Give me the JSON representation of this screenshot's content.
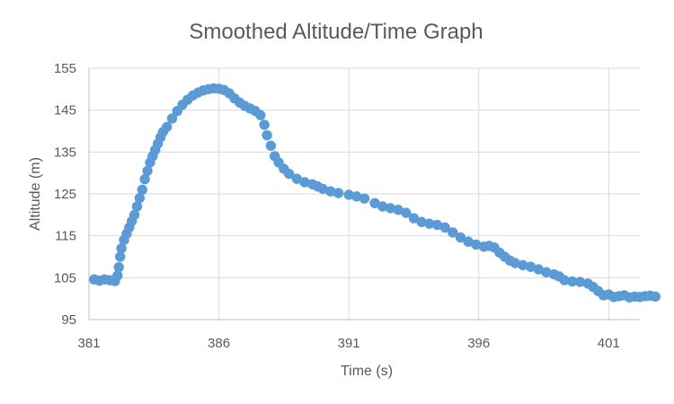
{
  "chart_data": {
    "type": "scatter",
    "title": "Smoothed Altitude/Time Graph",
    "xlabel": "Time (s)",
    "ylabel": "Altitude (m)",
    "xlim": [
      381,
      402.2
    ],
    "ylim": [
      95,
      155
    ],
    "x_ticks": [
      381,
      386,
      391,
      396,
      401
    ],
    "y_ticks": [
      95,
      105,
      115,
      125,
      135,
      145,
      155
    ],
    "grid": true,
    "legend": "none",
    "series": [
      {
        "color": "#5b9bd5",
        "points": [
          [
            381.2,
            104.6
          ],
          [
            381.4,
            104.3
          ],
          [
            381.6,
            104.6
          ],
          [
            381.8,
            104.4
          ],
          [
            382.0,
            104.2
          ],
          [
            382.1,
            105.5
          ],
          [
            382.15,
            107.5
          ],
          [
            382.2,
            110.0
          ],
          [
            382.25,
            112.0
          ],
          [
            382.35,
            114.0
          ],
          [
            382.45,
            115.5
          ],
          [
            382.55,
            117.0
          ],
          [
            382.65,
            118.5
          ],
          [
            382.75,
            120.0
          ],
          [
            382.85,
            122.0
          ],
          [
            382.95,
            124.0
          ],
          [
            383.05,
            126.0
          ],
          [
            383.15,
            128.5
          ],
          [
            383.25,
            130.5
          ],
          [
            383.35,
            132.5
          ],
          [
            383.45,
            134.0
          ],
          [
            383.55,
            135.5
          ],
          [
            383.65,
            137.0
          ],
          [
            383.75,
            138.5
          ],
          [
            383.85,
            139.8
          ],
          [
            384.0,
            141.0
          ],
          [
            384.2,
            143.0
          ],
          [
            384.4,
            144.8
          ],
          [
            384.6,
            146.3
          ],
          [
            384.8,
            147.5
          ],
          [
            385.0,
            148.5
          ],
          [
            385.2,
            149.2
          ],
          [
            385.4,
            149.7
          ],
          [
            385.6,
            150.0
          ],
          [
            385.8,
            150.2
          ],
          [
            386.0,
            150.1
          ],
          [
            386.2,
            149.8
          ],
          [
            386.4,
            149.0
          ],
          [
            386.6,
            147.8
          ],
          [
            386.8,
            146.8
          ],
          [
            387.0,
            146.0
          ],
          [
            387.2,
            145.4
          ],
          [
            387.4,
            144.8
          ],
          [
            387.6,
            143.8
          ],
          [
            387.75,
            141.5
          ],
          [
            387.85,
            139.0
          ],
          [
            388.0,
            136.5
          ],
          [
            388.15,
            134.0
          ],
          [
            388.3,
            132.5
          ],
          [
            388.5,
            131.0
          ],
          [
            388.7,
            129.8
          ],
          [
            389.0,
            128.6
          ],
          [
            389.3,
            127.8
          ],
          [
            389.6,
            127.3
          ],
          [
            389.8,
            126.8
          ],
          [
            390.0,
            126.2
          ],
          [
            390.3,
            125.6
          ],
          [
            390.6,
            125.2
          ],
          [
            391.0,
            124.8
          ],
          [
            391.3,
            124.4
          ],
          [
            391.6,
            123.9
          ],
          [
            392.0,
            122.8
          ],
          [
            392.3,
            122.0
          ],
          [
            392.6,
            121.6
          ],
          [
            392.9,
            121.2
          ],
          [
            393.2,
            120.5
          ],
          [
            393.5,
            119.2
          ],
          [
            393.8,
            118.3
          ],
          [
            394.1,
            117.9
          ],
          [
            394.4,
            117.6
          ],
          [
            394.7,
            117.0
          ],
          [
            395.0,
            115.8
          ],
          [
            395.3,
            114.6
          ],
          [
            395.6,
            113.6
          ],
          [
            395.9,
            112.9
          ],
          [
            396.2,
            112.4
          ],
          [
            396.4,
            112.6
          ],
          [
            396.6,
            112.2
          ],
          [
            396.8,
            111.0
          ],
          [
            397.0,
            110.0
          ],
          [
            397.2,
            109.1
          ],
          [
            397.4,
            108.5
          ],
          [
            397.7,
            108.0
          ],
          [
            398.0,
            107.6
          ],
          [
            398.3,
            107.0
          ],
          [
            398.6,
            106.3
          ],
          [
            398.9,
            105.8
          ],
          [
            399.1,
            105.3
          ],
          [
            399.3,
            104.4
          ],
          [
            399.6,
            104.1
          ],
          [
            399.9,
            104.0
          ],
          [
            400.2,
            103.6
          ],
          [
            400.4,
            102.8
          ],
          [
            400.6,
            101.8
          ],
          [
            400.8,
            100.8
          ],
          [
            401.0,
            101.0
          ],
          [
            401.2,
            100.4
          ],
          [
            401.4,
            100.6
          ],
          [
            401.6,
            100.8
          ],
          [
            401.8,
            100.3
          ],
          [
            402.0,
            100.5
          ],
          [
            402.2,
            100.4
          ],
          [
            402.4,
            100.6
          ],
          [
            402.6,
            100.7
          ],
          [
            402.8,
            100.5
          ]
        ]
      }
    ]
  }
}
